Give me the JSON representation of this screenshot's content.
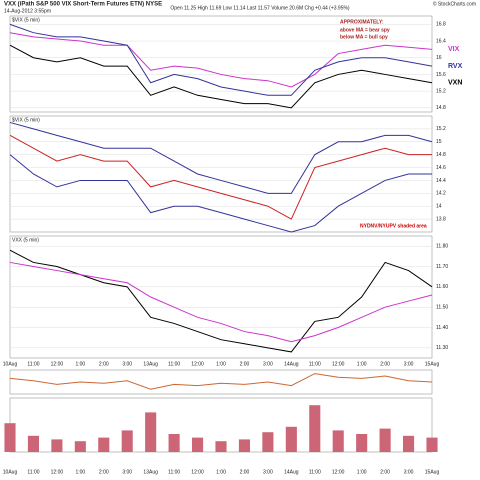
{
  "header": {
    "symbol": "VXX (iPath S&P 500 VIX Short-Term Futures ETN) NYSE",
    "date": "14-Aug-2012 3:55pm",
    "quote": "Open 11.25  High 11.69  Low 11.14  Last 11.57  Volume 20.6M  Chg +0.44 (+3.95%)",
    "credit": "© StockCharts.com"
  },
  "chart_data": [
    {
      "type": "line",
      "title": "$VIX (5 min)",
      "ylim": [
        14.7,
        17.0
      ],
      "yticks": [
        16.8,
        16.4,
        16.0,
        15.6,
        15.2,
        14.8
      ],
      "annotations": [
        "APPROXIMATELY:",
        "above MA = bear spy",
        "below MA = bull spy"
      ],
      "series": [
        {
          "name": "VIX",
          "color": "#cc33cc",
          "values": [
            16.6,
            16.5,
            16.45,
            16.4,
            16.3,
            16.3,
            15.7,
            15.8,
            15.75,
            15.6,
            15.5,
            15.45,
            15.3,
            15.6,
            16.1,
            16.2,
            16.3,
            16.25,
            16.2
          ]
        },
        {
          "name": "RVX",
          "color": "#333399",
          "values": [
            16.8,
            16.6,
            16.5,
            16.5,
            16.4,
            16.3,
            15.4,
            15.6,
            15.5,
            15.3,
            15.2,
            15.1,
            15.1,
            15.7,
            15.9,
            16.0,
            16.0,
            15.9,
            15.8
          ]
        },
        {
          "name": "VXN",
          "color": "#000000",
          "values": [
            16.3,
            16.0,
            15.9,
            16.0,
            15.8,
            15.8,
            15.1,
            15.3,
            15.1,
            15.0,
            14.9,
            14.9,
            14.8,
            15.4,
            15.6,
            15.7,
            15.6,
            15.5,
            15.4
          ]
        }
      ]
    },
    {
      "type": "line",
      "title": "$VIX (5 min)",
      "ylim": [
        13.6,
        15.4
      ],
      "yticks": [
        15.2,
        15.0,
        14.8,
        14.6,
        14.4,
        14.2,
        14.0,
        13.8
      ],
      "annotations": [
        "NYDNV/NYUPV shaded area"
      ],
      "series": [
        {
          "color": "#cc2222",
          "values": [
            15.1,
            14.9,
            14.7,
            14.8,
            14.7,
            14.7,
            14.3,
            14.4,
            14.3,
            14.2,
            14.1,
            14.0,
            13.8,
            14.6,
            14.7,
            14.8,
            14.9,
            14.8,
            14.8
          ]
        },
        {
          "color": "#333399",
          "values": [
            15.3,
            15.2,
            15.1,
            15.0,
            14.9,
            14.9,
            14.9,
            14.7,
            14.5,
            14.4,
            14.3,
            14.2,
            14.2,
            14.8,
            15.0,
            15.0,
            15.1,
            15.1,
            15.0
          ]
        },
        {
          "color": "#333399",
          "values": [
            14.8,
            14.5,
            14.3,
            14.4,
            14.4,
            14.4,
            13.9,
            14.0,
            14.0,
            13.9,
            13.8,
            13.7,
            13.6,
            13.7,
            14.0,
            14.2,
            14.4,
            14.5,
            14.5
          ]
        }
      ]
    },
    {
      "type": "line",
      "title": "VXX (5 min)",
      "ylim": [
        11.25,
        11.85
      ],
      "yticks": [
        {
          "value": 11.8,
          "label": "11.80"
        },
        {
          "value": 11.7,
          "label": "11.70"
        },
        {
          "value": 11.6,
          "label": "11.60"
        },
        {
          "value": 11.5,
          "label": "11.50"
        },
        {
          "value": 11.4,
          "label": "11.40"
        },
        {
          "value": 11.3,
          "label": "11.30"
        }
      ],
      "categories": [
        "10Aug",
        "11:00",
        "12:00",
        "1:00",
        "2:00",
        "3:00",
        "13Aug",
        "11:00",
        "12:00",
        "1:00",
        "2:00",
        "3:00",
        "14Aug",
        "11:00",
        "12:00",
        "1:00",
        "2:00",
        "3:00",
        "15Aug"
      ],
      "series": [
        {
          "color": "#000000",
          "values": [
            11.78,
            11.72,
            11.7,
            11.66,
            11.62,
            11.6,
            11.45,
            11.42,
            11.38,
            11.34,
            11.32,
            11.3,
            11.28,
            11.43,
            11.45,
            11.55,
            11.72,
            11.68,
            11.6
          ]
        },
        {
          "color": "#cc33cc",
          "values": [
            11.72,
            11.7,
            11.68,
            11.66,
            11.64,
            11.62,
            11.55,
            11.5,
            11.45,
            11.42,
            11.38,
            11.36,
            11.33,
            11.36,
            11.4,
            11.45,
            11.5,
            11.53,
            11.56
          ]
        }
      ]
    },
    {
      "type": "line",
      "ylim": [
        -1,
        1
      ],
      "series": [
        {
          "color": "#cc6633",
          "values": [
            0.3,
            0.1,
            -0.2,
            0.0,
            -0.1,
            0.1,
            -0.6,
            -0.2,
            -0.3,
            -0.1,
            -0.2,
            0.0,
            -0.3,
            0.7,
            0.4,
            0.3,
            0.5,
            0.1,
            0.0
          ]
        }
      ]
    },
    {
      "type": "bar",
      "ylim": [
        0,
        3
      ],
      "color": "#cc6677",
      "categories": [
        "10Aug",
        "11:00",
        "12:00",
        "1:00",
        "2:00",
        "3:00",
        "13Aug",
        "11:00",
        "12:00",
        "1:00",
        "2:00",
        "3:00",
        "14Aug",
        "11:00",
        "12:00",
        "1:00",
        "2:00",
        "3:00",
        "15Aug"
      ],
      "values": [
        1.6,
        0.9,
        0.7,
        0.6,
        0.8,
        1.2,
        2.2,
        1.0,
        0.8,
        0.6,
        0.7,
        1.1,
        1.4,
        2.6,
        1.2,
        1.0,
        1.3,
        0.9,
        0.8
      ]
    }
  ]
}
